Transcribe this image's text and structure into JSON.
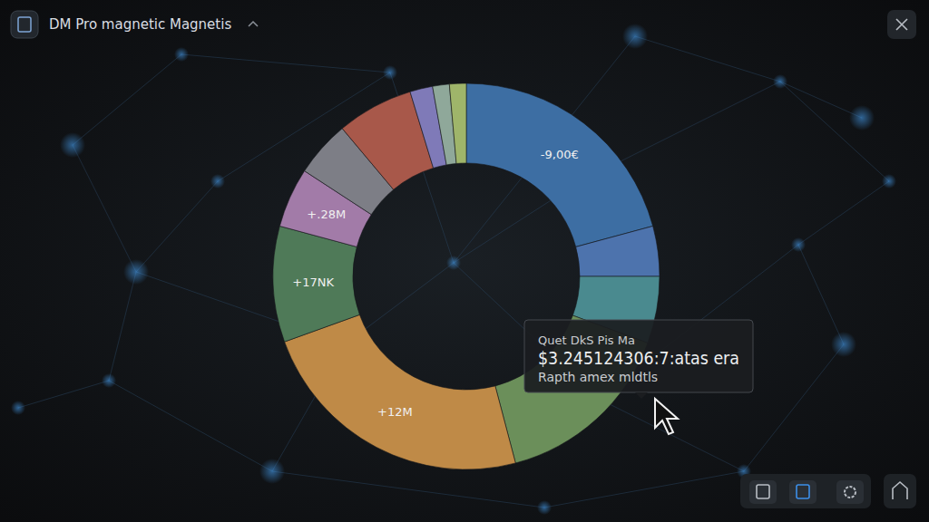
{
  "chart_data": {
    "type": "donut",
    "title": "DM Pro magnetic Magnetis",
    "categories": [
      null,
      null,
      null,
      null,
      null,
      null,
      null,
      null,
      null,
      null,
      null,
      null
    ],
    "values": [
      20.8,
      4.2,
      5.6,
      15.3,
      23.6,
      9.7,
      5.0,
      4.7,
      6.4,
      1.9,
      1.4,
      1.4
    ],
    "colors": [
      "#3d6ea3",
      "#4d73ad",
      "#4a8a8f",
      "#6b8f5a",
      "#bf8a47",
      "#4f7a58",
      "#a27ba8",
      "#7d7e86",
      "#a8584a",
      "#7f7ab8",
      "#8fa89a",
      "#9fb56a"
    ],
    "annotations": [
      {
        "text": "-9,00€",
        "slice": 0
      },
      {
        "text": "+12M",
        "slice": 4
      },
      {
        "text": "+17NK",
        "slice": 5
      },
      {
        "text": "+.28M",
        "slice": 6
      }
    ],
    "tooltip": [
      "Quet DkS Pis Ma",
      "$3.245124306:7:atas era",
      "Rapth amex mldtls"
    ]
  }
}
